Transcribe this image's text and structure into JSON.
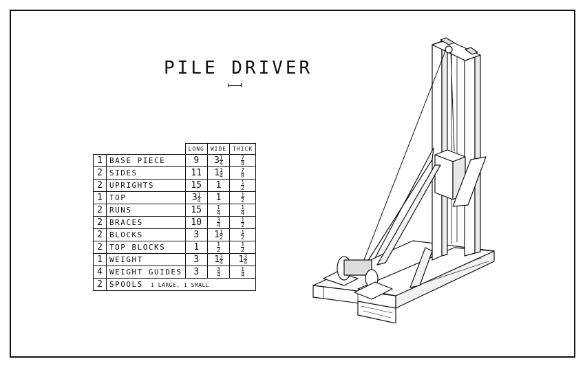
{
  "title": "PILE DRIVER",
  "table": {
    "headers": [
      "",
      "",
      "LONG",
      "WIDE",
      "THICK"
    ],
    "rows": [
      {
        "qty": "1",
        "name": "BASE PIECE",
        "long": "9",
        "wide": "3 1/4",
        "thick": "7/8"
      },
      {
        "qty": "2",
        "name": "SIDES",
        "long": "11",
        "wide": "1 1/4",
        "thick": "7/8"
      },
      {
        "qty": "2",
        "name": "UPRIGHTS",
        "long": "15",
        "wide": "1",
        "thick": "1/2"
      },
      {
        "qty": "1",
        "name": "TOP",
        "long": "3 1/4",
        "wide": "1",
        "thick": "1/2"
      },
      {
        "qty": "2",
        "name": "RUNS",
        "long": "15",
        "wide": "1/4",
        "thick": "1/4"
      },
      {
        "qty": "2",
        "name": "BRACES",
        "long": "10",
        "wide": "3/4",
        "thick": "1/2"
      },
      {
        "qty": "2",
        "name": "BLOCKS",
        "long": "3",
        "wide": "1 1/2",
        "thick": "1/2"
      },
      {
        "qty": "2",
        "name": "TOP BLOCKS",
        "long": "1",
        "wide": "1/2",
        "thick": "1/2"
      },
      {
        "qty": "1",
        "name": "WEIGHT",
        "long": "3",
        "wide": "1 3/4",
        "thick": "1 3/4"
      },
      {
        "qty": "4",
        "name": "WEIGHT GUIDES",
        "long": "3",
        "wide": "3/4",
        "thick": "1/4"
      }
    ],
    "last_row": {
      "qty": "2",
      "name": "SPOOLS",
      "note": "1 LARGE, 1 SMALL"
    }
  }
}
